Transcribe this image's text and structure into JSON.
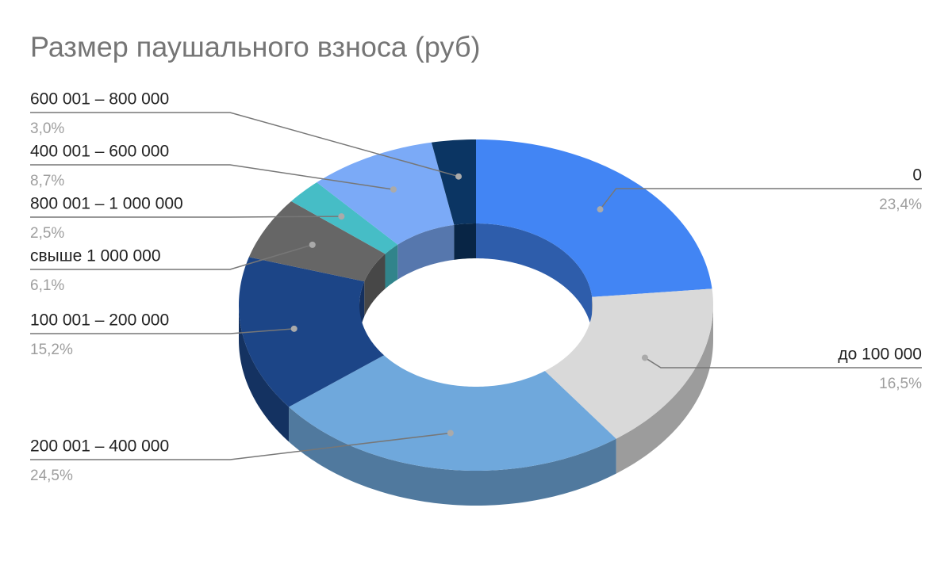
{
  "chart_data": {
    "type": "donut",
    "title": "Размер паушального взноса (руб)",
    "categories": [
      "0",
      "до 100 000",
      "200 001 – 400 000",
      "100 001 – 200 000",
      "свыше 1 000 000",
      "800 001 – 1 000 000",
      "400 001 – 600 000",
      "600 001 – 800 000"
    ],
    "values": [
      23.4,
      16.5,
      24.5,
      15.2,
      6.1,
      2.5,
      8.7,
      3.0
    ],
    "value_labels": [
      "23,4%",
      "16,5%",
      "24,5%",
      "15,2%",
      "6,1%",
      "2,5%",
      "8,7%",
      "3,0%"
    ],
    "colors": [
      "#4285f4",
      "#d9d9d9",
      "#6fa8dc",
      "#1c4587",
      "#666666",
      "#46bdc6",
      "#7baaf7",
      "#0b3563"
    ]
  }
}
